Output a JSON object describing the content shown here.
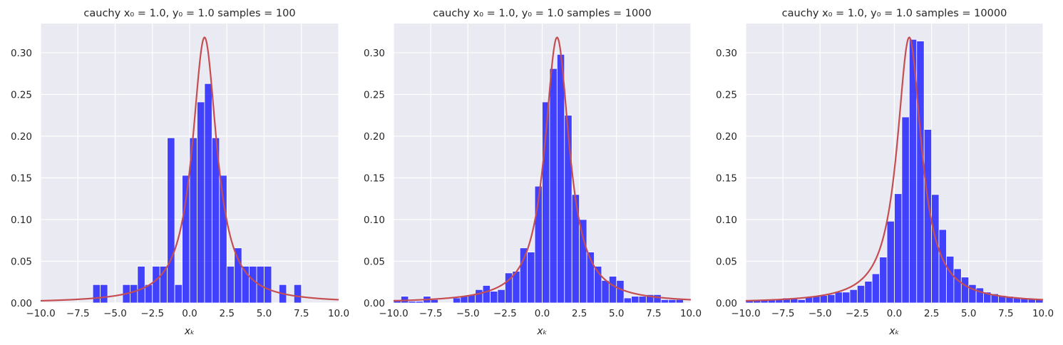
{
  "chart_data": [
    {
      "type": "bar",
      "title": "cauchy x₀ = 1.0, y₀ = 1.0  samples = 100",
      "xlabel": "xₖ",
      "ylabel": "",
      "xlim": [
        -10,
        10
      ],
      "ylim": [
        0,
        0.335
      ],
      "xticks": [
        "−10.0",
        "−7.5",
        "−5.0",
        "−2.5",
        "0.0",
        "2.5",
        "5.0",
        "7.5",
        "10.0"
      ],
      "yticks": [
        "0.00",
        "0.05",
        "0.10",
        "0.15",
        "0.20",
        "0.25",
        "0.30"
      ],
      "grid": true,
      "bar_color": "#0000ff",
      "bars": [
        {
          "x0": -6.5,
          "x1": -6.0,
          "y": 0.022
        },
        {
          "x0": -6.0,
          "x1": -5.5,
          "y": 0.022
        },
        {
          "x0": -4.5,
          "x1": -4.0,
          "y": 0.022
        },
        {
          "x0": -4.0,
          "x1": -3.5,
          "y": 0.022
        },
        {
          "x0": -3.5,
          "x1": -3.0,
          "y": 0.044
        },
        {
          "x0": -3.0,
          "x1": -2.5,
          "y": 0.022
        },
        {
          "x0": -2.5,
          "x1": -2.0,
          "y": 0.044
        },
        {
          "x0": -2.0,
          "x1": -1.5,
          "y": 0.044
        },
        {
          "x0": -1.5,
          "x1": -1.0,
          "y": 0.198
        },
        {
          "x0": -1.0,
          "x1": -0.5,
          "y": 0.022
        },
        {
          "x0": -0.5,
          "x1": 0.0,
          "y": 0.153
        },
        {
          "x0": 0.0,
          "x1": 0.5,
          "y": 0.198
        },
        {
          "x0": 0.5,
          "x1": 1.0,
          "y": 0.241
        },
        {
          "x0": 1.0,
          "x1": 1.5,
          "y": 0.263
        },
        {
          "x0": 1.5,
          "x1": 2.0,
          "y": 0.198
        },
        {
          "x0": 2.0,
          "x1": 2.5,
          "y": 0.153
        },
        {
          "x0": 2.5,
          "x1": 3.0,
          "y": 0.044
        },
        {
          "x0": 3.0,
          "x1": 3.5,
          "y": 0.066
        },
        {
          "x0": 3.5,
          "x1": 4.0,
          "y": 0.044
        },
        {
          "x0": 4.0,
          "x1": 4.5,
          "y": 0.044
        },
        {
          "x0": 4.5,
          "x1": 5.0,
          "y": 0.044
        },
        {
          "x0": 5.0,
          "x1": 5.5,
          "y": 0.044
        },
        {
          "x0": 6.0,
          "x1": 6.5,
          "y": 0.022
        },
        {
          "x0": 7.0,
          "x1": 7.5,
          "y": 0.022
        }
      ],
      "curve": {
        "type": "cauchy_pdf",
        "x0": 1.0,
        "gamma": 1.0,
        "color": "#c44e52"
      }
    },
    {
      "type": "bar",
      "title": "cauchy x₀ = 1.0, y₀ = 1.0  samples = 1000",
      "xlabel": "xₖ",
      "ylabel": "",
      "xlim": [
        -10,
        10
      ],
      "ylim": [
        0,
        0.335
      ],
      "xticks": [
        "−10.0",
        "−7.5",
        "−5.0",
        "−2.5",
        "0.0",
        "2.5",
        "5.0",
        "7.5",
        "10.0"
      ],
      "yticks": [
        "0.00",
        "0.05",
        "0.10",
        "0.15",
        "0.20",
        "0.25",
        "0.30"
      ],
      "grid": true,
      "bar_color": "#0000ff",
      "bars": [
        {
          "x0": -10.0,
          "x1": -9.5,
          "y": 0.004
        },
        {
          "x0": -9.5,
          "x1": -9.0,
          "y": 0.008
        },
        {
          "x0": -9.0,
          "x1": -8.5,
          "y": 0.002
        },
        {
          "x0": -8.5,
          "x1": -8.0,
          "y": 0.002
        },
        {
          "x0": -8.0,
          "x1": -7.5,
          "y": 0.008
        },
        {
          "x0": -7.5,
          "x1": -7.0,
          "y": 0.004
        },
        {
          "x0": -6.0,
          "x1": -5.5,
          "y": 0.006
        },
        {
          "x0": -5.5,
          "x1": -5.0,
          "y": 0.008
        },
        {
          "x0": -5.0,
          "x1": -4.5,
          "y": 0.01
        },
        {
          "x0": -4.5,
          "x1": -4.0,
          "y": 0.016
        },
        {
          "x0": -4.0,
          "x1": -3.5,
          "y": 0.021
        },
        {
          "x0": -3.5,
          "x1": -3.0,
          "y": 0.014
        },
        {
          "x0": -3.0,
          "x1": -2.5,
          "y": 0.016
        },
        {
          "x0": -2.5,
          "x1": -2.0,
          "y": 0.036
        },
        {
          "x0": -2.0,
          "x1": -1.5,
          "y": 0.038
        },
        {
          "x0": -1.5,
          "x1": -1.0,
          "y": 0.066
        },
        {
          "x0": -1.0,
          "x1": -0.5,
          "y": 0.061
        },
        {
          "x0": -0.5,
          "x1": 0.0,
          "y": 0.14
        },
        {
          "x0": 0.0,
          "x1": 0.5,
          "y": 0.241
        },
        {
          "x0": 0.5,
          "x1": 1.0,
          "y": 0.281
        },
        {
          "x0": 1.0,
          "x1": 1.5,
          "y": 0.298
        },
        {
          "x0": 1.5,
          "x1": 2.0,
          "y": 0.225
        },
        {
          "x0": 2.0,
          "x1": 2.5,
          "y": 0.13
        },
        {
          "x0": 2.5,
          "x1": 3.0,
          "y": 0.1
        },
        {
          "x0": 3.0,
          "x1": 3.5,
          "y": 0.061
        },
        {
          "x0": 3.5,
          "x1": 4.0,
          "y": 0.044
        },
        {
          "x0": 4.0,
          "x1": 4.5,
          "y": 0.027
        },
        {
          "x0": 4.5,
          "x1": 5.0,
          "y": 0.032
        },
        {
          "x0": 5.0,
          "x1": 5.5,
          "y": 0.027
        },
        {
          "x0": 5.5,
          "x1": 6.0,
          "y": 0.006
        },
        {
          "x0": 6.0,
          "x1": 6.5,
          "y": 0.008
        },
        {
          "x0": 6.5,
          "x1": 7.0,
          "y": 0.008
        },
        {
          "x0": 7.0,
          "x1": 7.5,
          "y": 0.01
        },
        {
          "x0": 7.5,
          "x1": 8.0,
          "y": 0.01
        },
        {
          "x0": 8.0,
          "x1": 8.5,
          "y": 0.004
        },
        {
          "x0": 8.5,
          "x1": 9.0,
          "y": 0.004
        },
        {
          "x0": 9.0,
          "x1": 9.5,
          "y": 0.004
        }
      ],
      "curve": {
        "type": "cauchy_pdf",
        "x0": 1.0,
        "gamma": 1.0,
        "color": "#c44e52"
      }
    },
    {
      "type": "bar",
      "title": "cauchy x₀ = 1.0, y₀ = 1.0  samples = 10000",
      "xlabel": "xₖ",
      "ylabel": "",
      "xlim": [
        -10,
        10
      ],
      "ylim": [
        0,
        0.335
      ],
      "xticks": [
        "−10.0",
        "−7.5",
        "−5.0",
        "−2.5",
        "0.0",
        "2.5",
        "5.0",
        "7.5",
        "10.0"
      ],
      "yticks": [
        "0.00",
        "0.05",
        "0.10",
        "0.15",
        "0.20",
        "0.25",
        "0.30"
      ],
      "grid": true,
      "bar_color": "#0000ff",
      "bars": [
        {
          "x0": -10.0,
          "x1": -9.5,
          "y": 0.003
        },
        {
          "x0": -9.5,
          "x1": -9.0,
          "y": 0.003
        },
        {
          "x0": -9.0,
          "x1": -8.5,
          "y": 0.003
        },
        {
          "x0": -8.5,
          "x1": -8.0,
          "y": 0.004
        },
        {
          "x0": -8.0,
          "x1": -7.5,
          "y": 0.005
        },
        {
          "x0": -7.5,
          "x1": -7.0,
          "y": 0.006
        },
        {
          "x0": -7.0,
          "x1": -6.5,
          "y": 0.005
        },
        {
          "x0": -6.5,
          "x1": -6.0,
          "y": 0.004
        },
        {
          "x0": -6.0,
          "x1": -5.5,
          "y": 0.007
        },
        {
          "x0": -5.5,
          "x1": -5.0,
          "y": 0.008
        },
        {
          "x0": -5.0,
          "x1": -4.5,
          "y": 0.009
        },
        {
          "x0": -4.5,
          "x1": -4.0,
          "y": 0.01
        },
        {
          "x0": -4.0,
          "x1": -3.5,
          "y": 0.013
        },
        {
          "x0": -3.5,
          "x1": -3.0,
          "y": 0.013
        },
        {
          "x0": -3.0,
          "x1": -2.5,
          "y": 0.016
        },
        {
          "x0": -2.5,
          "x1": -2.0,
          "y": 0.021
        },
        {
          "x0": -2.0,
          "x1": -1.5,
          "y": 0.026
        },
        {
          "x0": -1.5,
          "x1": -1.0,
          "y": 0.035
        },
        {
          "x0": -1.0,
          "x1": -0.5,
          "y": 0.055
        },
        {
          "x0": -0.5,
          "x1": 0.0,
          "y": 0.098
        },
        {
          "x0": 0.0,
          "x1": 0.5,
          "y": 0.131
        },
        {
          "x0": 0.5,
          "x1": 1.0,
          "y": 0.223
        },
        {
          "x0": 1.0,
          "x1": 1.5,
          "y": 0.316
        },
        {
          "x0": 1.5,
          "x1": 2.0,
          "y": 0.314
        },
        {
          "x0": 2.0,
          "x1": 2.5,
          "y": 0.208
        },
        {
          "x0": 2.5,
          "x1": 3.0,
          "y": 0.13
        },
        {
          "x0": 3.0,
          "x1": 3.5,
          "y": 0.088
        },
        {
          "x0": 3.5,
          "x1": 4.0,
          "y": 0.056
        },
        {
          "x0": 4.0,
          "x1": 4.5,
          "y": 0.041
        },
        {
          "x0": 4.5,
          "x1": 5.0,
          "y": 0.031
        },
        {
          "x0": 5.0,
          "x1": 5.5,
          "y": 0.022
        },
        {
          "x0": 5.5,
          "x1": 6.0,
          "y": 0.018
        },
        {
          "x0": 6.0,
          "x1": 6.5,
          "y": 0.013
        },
        {
          "x0": 6.5,
          "x1": 7.0,
          "y": 0.011
        },
        {
          "x0": 7.0,
          "x1": 7.5,
          "y": 0.009
        },
        {
          "x0": 7.5,
          "x1": 8.0,
          "y": 0.008
        },
        {
          "x0": 8.0,
          "x1": 8.5,
          "y": 0.006
        },
        {
          "x0": 8.5,
          "x1": 9.0,
          "y": 0.006
        },
        {
          "x0": 9.0,
          "x1": 9.5,
          "y": 0.005
        },
        {
          "x0": 9.5,
          "x1": 10.0,
          "y": 0.004
        }
      ],
      "curve": {
        "type": "cauchy_pdf",
        "x0": 1.0,
        "gamma": 1.0,
        "color": "#c44e52"
      }
    }
  ],
  "style": {
    "plot_background": "#eaeaf2",
    "grid_color": "#ffffff",
    "bar_edge_color": "#ffffff",
    "text_color": "#262626"
  }
}
